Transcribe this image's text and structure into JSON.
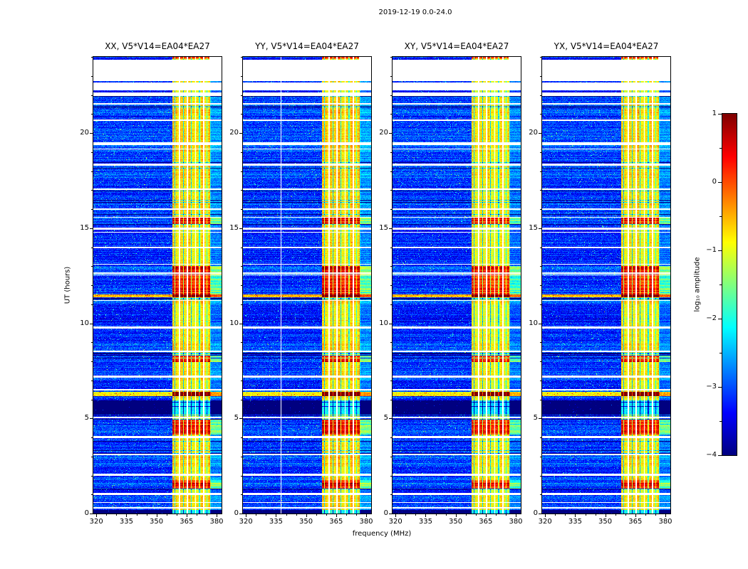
{
  "title": "2019-12-19 0.0-24.0",
  "axes": {
    "xlabel": "frequency (MHz)",
    "ylabel": "UT (hours)",
    "x_ticks": [
      320,
      335,
      350,
      365,
      380
    ],
    "y_ticks": [
      0,
      5,
      10,
      15,
      20
    ]
  },
  "colorbar": {
    "label": "log₁₀ amplitude",
    "tick_values": [
      1,
      0,
      -1,
      -2,
      -3,
      -4
    ],
    "tick_labels": [
      "1",
      "0",
      "−1",
      "−2",
      "−3",
      "−4"
    ]
  },
  "panels": [
    {
      "pol": "XX",
      "title": "XX, V5*V14=EA04*EA27",
      "seed": 11,
      "level_offset": 0
    },
    {
      "pol": "YY",
      "title": "YY, V5*V14=EA04*EA27",
      "seed": 22,
      "level_offset": 0.05,
      "white_vlines_mhz": [
        337.5
      ]
    },
    {
      "pol": "XY",
      "title": "XY, V5*V14=EA04*EA27",
      "seed": 33,
      "level_offset": -0.12
    },
    {
      "pol": "YX",
      "title": "YX, V5*V14=EA04*EA27",
      "seed": 44,
      "level_offset": -0.05
    }
  ],
  "chart_data": {
    "type": "heatmap",
    "title": "2019-12-19 0.0-24.0",
    "xlabel": "frequency (MHz)",
    "ylabel": "UT (hours)",
    "colorbar_label": "log10 amplitude",
    "colormap": "jet",
    "panels": [
      "XX, V5*V14=EA04*EA27",
      "YY, V5*V14=EA04*EA27",
      "XY, V5*V14=EA04*EA27",
      "YX, V5*V14=EA04*EA27"
    ],
    "x_range_mhz": [
      318.5,
      382.5
    ],
    "y_range_hours": [
      0,
      24
    ],
    "z_range_log10": [
      -4,
      1
    ],
    "x_ticks": [
      320,
      335,
      350,
      365,
      380
    ],
    "y_ticks": [
      0,
      5,
      10,
      15,
      20
    ],
    "colorbar_ticks": [
      -4,
      -3,
      -2,
      -1,
      0,
      1
    ],
    "background_level": -3.15,
    "rfi_band_mhz": [
      357.8,
      377.3
    ],
    "rfi_band_level": -0.75,
    "white_channel_lines_mhz": [
      361.5,
      365.5,
      369.5,
      373.5
    ],
    "dark_channel_lines_mhz": [
      359.3,
      363.5,
      367.5,
      371.5,
      375.3,
      376.9
    ],
    "data_gaps_hours": [
      [
        0.28,
        0.33
      ],
      [
        0.97,
        1.07
      ],
      [
        2.0,
        2.1
      ],
      [
        3.05,
        3.15
      ],
      [
        3.97,
        4.07
      ],
      [
        5.0,
        5.1
      ],
      [
        6.48,
        6.53
      ],
      [
        7.15,
        7.26
      ],
      [
        8.47,
        8.56
      ],
      [
        9.72,
        9.84
      ],
      [
        11.16,
        11.22
      ],
      [
        12.6,
        12.66
      ],
      [
        13.93,
        14.03
      ],
      [
        14.93,
        15.03
      ],
      [
        15.95,
        16.05
      ],
      [
        17.0,
        17.1
      ],
      [
        18.28,
        18.38
      ],
      [
        19.35,
        19.5
      ],
      [
        20.62,
        20.7
      ],
      [
        21.5,
        21.58
      ],
      [
        21.95,
        22.14
      ],
      [
        22.25,
        22.64
      ],
      [
        22.72,
        23.86
      ]
    ],
    "dark_intervals_hours": [
      [
        0.0,
        0.17
      ],
      [
        5.18,
        5.95
      ],
      [
        11.24,
        11.34
      ]
    ],
    "band_bursts_hours": [
      [
        1.3,
        1.75
      ],
      [
        4.15,
        4.95
      ],
      [
        7.95,
        8.3
      ],
      [
        11.5,
        12.58
      ],
      [
        12.68,
        13.0
      ],
      [
        15.2,
        15.6
      ],
      [
        23.88,
        24.0
      ]
    ],
    "fullband_bursts_hours": [
      [
        6.18,
        6.4
      ],
      [
        11.36,
        11.5
      ]
    ]
  }
}
